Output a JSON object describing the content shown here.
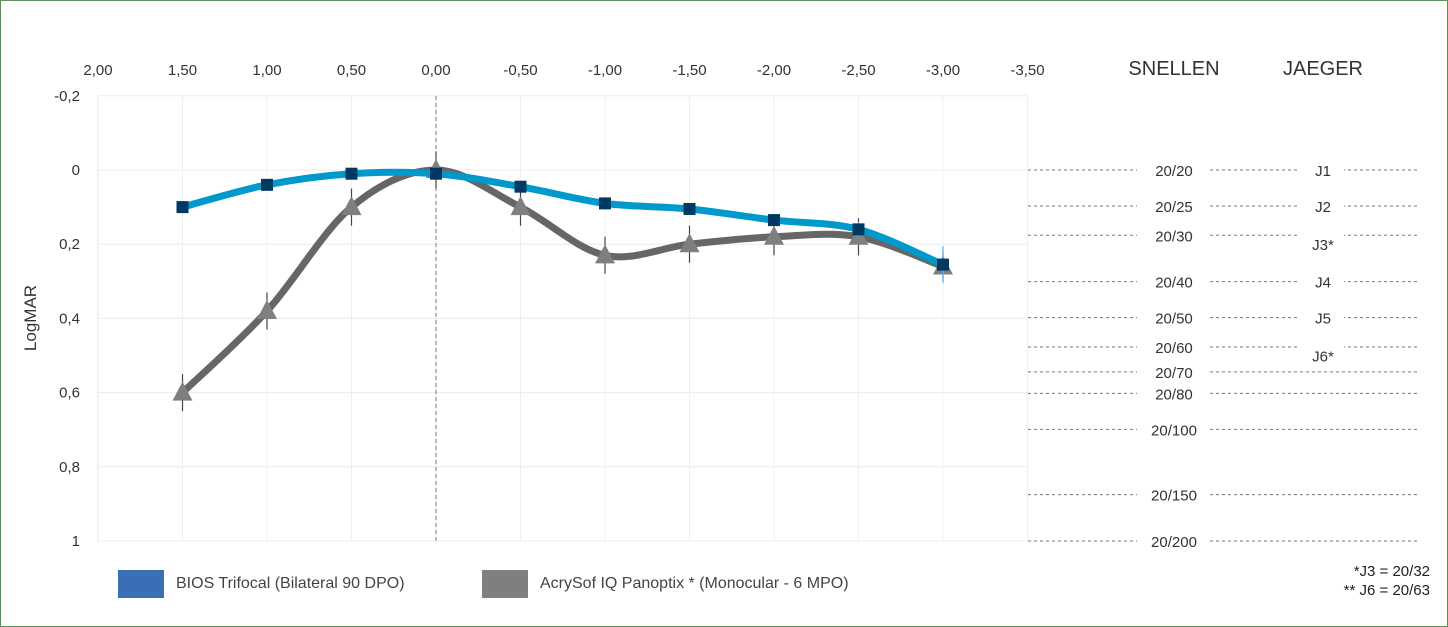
{
  "chart_data": {
    "type": "line",
    "title": "",
    "xlabel": "",
    "ylabel": "LogMAR",
    "x_ticks": [
      "2,00",
      "1,50",
      "1,00",
      "0,50",
      "0,00",
      "-0,50",
      "-1,00",
      "-1,50",
      "-2,00",
      "-2,50",
      "-3,00",
      "-3,50"
    ],
    "x_tick_values": [
      2,
      1.5,
      1,
      0.5,
      0,
      -0.5,
      -1,
      -1.5,
      -2,
      -2.5,
      -3,
      -3.5
    ],
    "y_ticks": [
      "-0,2",
      "0",
      "0,2",
      "0,4",
      "0,6",
      "0,8",
      "1"
    ],
    "y_tick_values": [
      -0.2,
      0,
      0.2,
      0.4,
      0.6,
      0.8,
      1
    ],
    "xlim": [
      2,
      -3.5
    ],
    "ylim": [
      -0.2,
      1
    ],
    "y_inverted": true,
    "grid": true,
    "x": [
      1.5,
      1,
      0.5,
      0,
      -0.5,
      -1,
      -1.5,
      -2,
      -2.5,
      -3
    ],
    "series": [
      {
        "name": "BIOS Trifocal (Bilateral 90 DPO)",
        "color": "#0099cc",
        "marker_color": "#003a63",
        "legend_color": "#3a6fb8",
        "marker": "square",
        "values": [
          0.1,
          0.04,
          0.01,
          0.01,
          0.045,
          0.09,
          0.105,
          0.135,
          0.16,
          0.255
        ],
        "error": [
          0.01,
          0.01,
          0.01,
          0.01,
          0.01,
          0.01,
          0.01,
          0.01,
          0.02,
          0.05
        ]
      },
      {
        "name": "AcrySof IQ Panoptix * (Monocular - 6 MPO)",
        "color": "#666666",
        "marker_color": "#7f7f7f",
        "legend_color": "#7f7f7f",
        "marker": "triangle",
        "values": [
          0.6,
          0.38,
          0.1,
          0.0,
          0.1,
          0.23,
          0.2,
          0.18,
          0.18,
          0.26
        ],
        "error": [
          0.05,
          0.05,
          0.05,
          0.05,
          0.05,
          0.05,
          0.05,
          0.05,
          0.05,
          0.04
        ]
      }
    ],
    "reference_axis": {
      "snellen_header": "SNELLEN",
      "jaeger_header": "JAEGER",
      "snellen": [
        {
          "label": "20/20",
          "logmar": 0
        },
        {
          "label": "20/25",
          "logmar": 0.097
        },
        {
          "label": "20/30",
          "logmar": 0.176
        },
        {
          "label": "20/40",
          "logmar": 0.301
        },
        {
          "label": "20/50",
          "logmar": 0.398
        },
        {
          "label": "20/60",
          "logmar": 0.477
        },
        {
          "label": "20/70",
          "logmar": 0.544
        },
        {
          "label": "20/80",
          "logmar": 0.602
        },
        {
          "label": "20/100",
          "logmar": 0.699
        },
        {
          "label": "20/150",
          "logmar": 0.875
        },
        {
          "label": "20/200",
          "logmar": 1
        }
      ],
      "jaeger": [
        {
          "label": "J1",
          "logmar": 0
        },
        {
          "label": "J2",
          "logmar": 0.097
        },
        {
          "label": "J3*",
          "logmar": 0.2
        },
        {
          "label": "J4",
          "logmar": 0.301
        },
        {
          "label": "J5",
          "logmar": 0.398
        },
        {
          "label": "J6*",
          "logmar": 0.5
        }
      ]
    },
    "notes": [
      "*J3 = 20/32",
      "** J6 = 20/63"
    ],
    "legend_placement": "bottom-left"
  }
}
